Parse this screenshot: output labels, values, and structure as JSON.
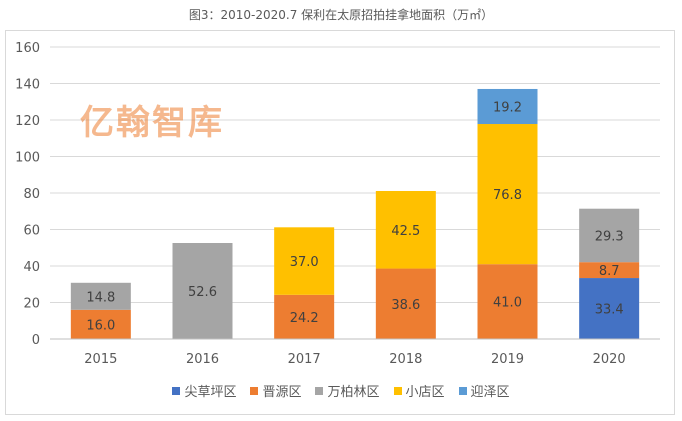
{
  "chart_data": {
    "type": "bar",
    "stacked": true,
    "title": "图3：2010-2020.7 保利在太原招拍挂拿地面积（万㎡）",
    "xlabel": "",
    "ylabel": "",
    "categories": [
      "2015",
      "2016",
      "2017",
      "2018",
      "2019",
      "2020"
    ],
    "ylim": [
      0,
      160
    ],
    "yticks": [
      0,
      20,
      40,
      60,
      80,
      100,
      120,
      140,
      160
    ],
    "grid": true,
    "legend_position": "bottom",
    "series": [
      {
        "name": "尖草坪区",
        "color": "#4472C4",
        "values": [
          null,
          null,
          null,
          null,
          null,
          33.4
        ]
      },
      {
        "name": "晋源区",
        "color": "#ED7D31",
        "values": [
          16.0,
          null,
          24.2,
          38.6,
          41.0,
          8.7
        ]
      },
      {
        "name": "万柏林区",
        "color": "#A5A5A5",
        "values": [
          14.8,
          52.6,
          null,
          null,
          null,
          29.3
        ]
      },
      {
        "name": "小店区",
        "color": "#FFC000",
        "values": [
          null,
          null,
          37.0,
          42.5,
          76.8,
          null
        ]
      },
      {
        "name": "迎泽区",
        "color": "#5B9BD5",
        "values": [
          null,
          null,
          null,
          null,
          19.2,
          null
        ]
      }
    ]
  },
  "watermark": "亿翰智库"
}
